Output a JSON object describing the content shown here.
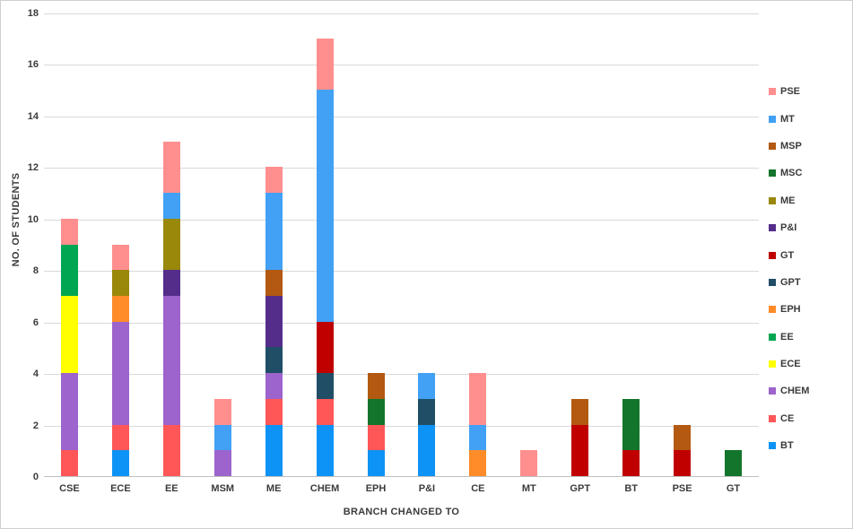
{
  "chart_data": {
    "type": "bar",
    "stacked": true,
    "title": "",
    "xlabel": "BRANCH CHANGED TO",
    "ylabel": "NO. OF STUDENTS",
    "ylim": [
      0,
      18
    ],
    "yticks": [
      0,
      2,
      4,
      6,
      8,
      10,
      12,
      14,
      16,
      18
    ],
    "grid": true,
    "legend_position": "right",
    "legend_order_top_to_bottom": [
      "PSE",
      "MT",
      "MSP",
      "MSC",
      "ME",
      "P&I",
      "GT",
      "GPT",
      "EPH",
      "EE",
      "ECE",
      "CHEM",
      "CE",
      "BT"
    ],
    "categories": [
      "CSE",
      "ECE",
      "EE",
      "MSM",
      "ME",
      "CHEM",
      "EPH",
      "P&I",
      "CE",
      "MT",
      "GPT",
      "BT",
      "PSE",
      "GT"
    ],
    "series": [
      {
        "name": "BT",
        "color": "#0d93f5",
        "values": [
          0,
          1,
          0,
          0,
          2,
          2,
          1,
          2,
          0,
          0,
          0,
          0,
          0,
          0
        ]
      },
      {
        "name": "CE",
        "color": "#ff5757",
        "values": [
          1,
          1,
          2,
          0,
          1,
          1,
          1,
          0,
          0,
          0,
          0,
          0,
          0,
          0
        ]
      },
      {
        "name": "CHEM",
        "color": "#9c64cc",
        "values": [
          3,
          4,
          5,
          1,
          1,
          0,
          0,
          0,
          0,
          0,
          0,
          0,
          0,
          0
        ]
      },
      {
        "name": "ECE",
        "color": "#ffff00",
        "values": [
          3,
          0,
          0,
          0,
          0,
          0,
          0,
          0,
          0,
          0,
          0,
          0,
          0,
          0
        ]
      },
      {
        "name": "EE",
        "color": "#00a651",
        "values": [
          2,
          0,
          0,
          0,
          0,
          0,
          0,
          0,
          0,
          0,
          0,
          0,
          0,
          0
        ]
      },
      {
        "name": "EPH",
        "color": "#ff8c29",
        "values": [
          0,
          1,
          0,
          0,
          0,
          0,
          0,
          0,
          1,
          0,
          0,
          0,
          0,
          0
        ]
      },
      {
        "name": "GPT",
        "color": "#1f4e66",
        "values": [
          0,
          0,
          0,
          0,
          1,
          1,
          0,
          1,
          0,
          0,
          0,
          0,
          0,
          0
        ]
      },
      {
        "name": "GT",
        "color": "#c00000",
        "values": [
          0,
          0,
          0,
          0,
          0,
          2,
          0,
          0,
          0,
          0,
          2,
          1,
          1,
          0
        ]
      },
      {
        "name": "P&I",
        "color": "#542d8b",
        "values": [
          0,
          0,
          1,
          0,
          2,
          0,
          0,
          0,
          0,
          0,
          0,
          0,
          0,
          0
        ]
      },
      {
        "name": "ME",
        "color": "#99880a",
        "values": [
          0,
          1,
          2,
          0,
          0,
          0,
          0,
          0,
          0,
          0,
          0,
          0,
          0,
          0
        ]
      },
      {
        "name": "MSC",
        "color": "#13752b",
        "values": [
          0,
          0,
          0,
          0,
          0,
          0,
          1,
          0,
          0,
          0,
          0,
          2,
          0,
          1
        ]
      },
      {
        "name": "MSP",
        "color": "#b35911",
        "values": [
          0,
          0,
          0,
          0,
          1,
          0,
          1,
          0,
          0,
          0,
          1,
          0,
          1,
          0
        ]
      },
      {
        "name": "MT",
        "color": "#42a1f5",
        "values": [
          0,
          0,
          1,
          1,
          3,
          9,
          0,
          1,
          1,
          0,
          0,
          0,
          0,
          0
        ]
      },
      {
        "name": "PSE",
        "color": "#ff8f8f",
        "values": [
          1,
          1,
          2,
          1,
          1,
          2,
          0,
          0,
          2,
          1,
          0,
          0,
          0,
          0
        ]
      }
    ]
  }
}
